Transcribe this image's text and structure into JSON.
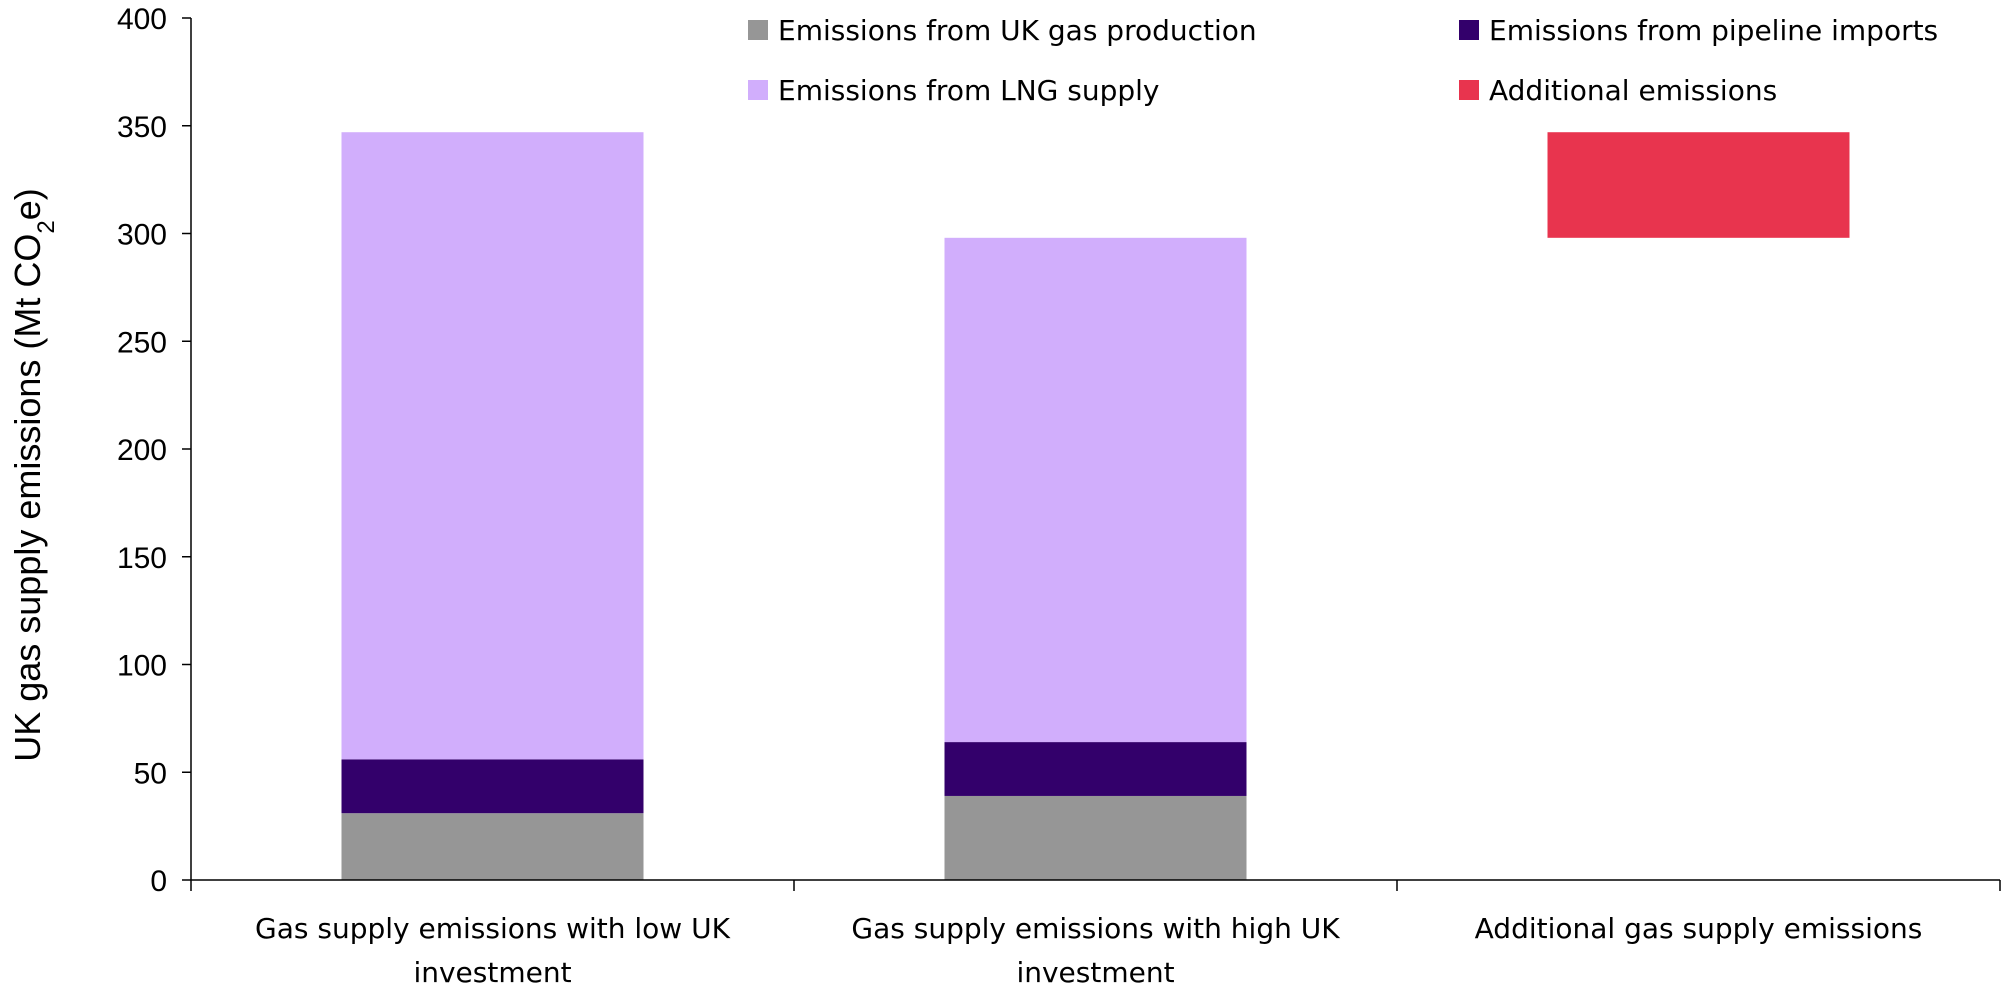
{
  "chart_data": {
    "type": "bar",
    "stacked": true,
    "title": "",
    "xlabel": "",
    "ylabel_main": "UK gas supply emissions (Mt CO",
    "ylabel_sub": "2",
    "ylabel_end": "e)",
    "ylim": [
      0,
      400
    ],
    "yticks": [
      0,
      50,
      100,
      150,
      200,
      250,
      300,
      350,
      400
    ],
    "grid": false,
    "legend_position": "top-right",
    "categories": [
      [
        "Gas supply emissions with low UK",
        "investment"
      ],
      [
        "Gas supply emissions with high UK",
        "investment"
      ],
      [
        "Additional gas supply emissions"
      ]
    ],
    "series": [
      {
        "name": "Emissions from UK gas production",
        "color": "#969696",
        "values": [
          31,
          39,
          null
        ]
      },
      {
        "name": "Emissions from pipeline imports",
        "color": "#33006b",
        "values": [
          25,
          25,
          null
        ]
      },
      {
        "name": "Emissions from LNG supply",
        "color": "#d1aefc",
        "values": [
          291,
          234,
          null
        ]
      },
      {
        "name": "Additional emissions",
        "color": "#e8344e",
        "values": [
          null,
          null,
          49
        ],
        "base": [
          null,
          null,
          298
        ]
      }
    ]
  }
}
